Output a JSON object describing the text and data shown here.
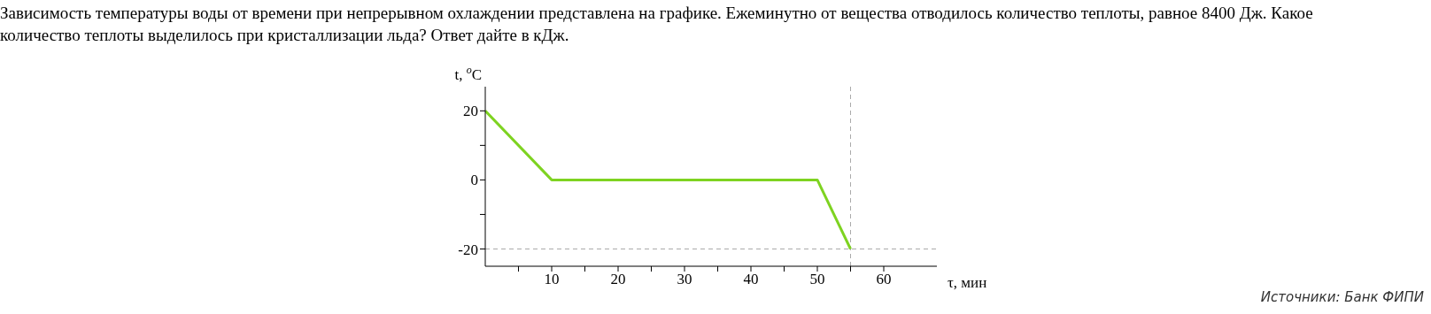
{
  "chart_data": {
    "type": "line",
    "title": "Зависимость температуры воды от времени при непрерывном охлаждении представлена на графике. Ежеминутно от вещества отводилось количество теплоты, равное 8400 Дж. Какое количество теплоты выделилось при кристаллизации льда? Ответ дайте в кДж.",
    "xlabel": "τ, мин",
    "ylabel": "t, $^{o}$C",
    "x": [
      0,
      10,
      50,
      55
    ],
    "series": [
      {
        "color": "#7ed321",
        "values": [
          20,
          0,
          0,
          -20
        ]
      }
    ],
    "xlim": [
      0,
      68
    ],
    "xticks": [
      {
        "value": 5,
        "label": null
      },
      10,
      {
        "value": 15,
        "label": null
      },
      20,
      {
        "value": 25,
        "label": null
      },
      30,
      {
        "value": 35,
        "label": null
      },
      40,
      {
        "value": 45,
        "label": null
      },
      50,
      {
        "value": 55,
        "label": null
      },
      60
    ],
    "ylim": [
      -25,
      27
    ],
    "yticks": [
      -20,
      {
        "value": -10,
        "label": null
      },
      0,
      {
        "value": 10,
        "label": null
      },
      20
    ],
    "ref_lines": [
      {
        "axis": "y",
        "value": -20,
        "color": "#aaaaaa",
        "line_style": "dashed"
      },
      {
        "axis": "x",
        "value": 55,
        "color": "#aaaaaa",
        "line_style": "dashed"
      }
    ],
    "marker": "none",
    "line_style": "solid",
    "annotations": [
      "Источники: Банк ФИПИ"
    ]
  }
}
